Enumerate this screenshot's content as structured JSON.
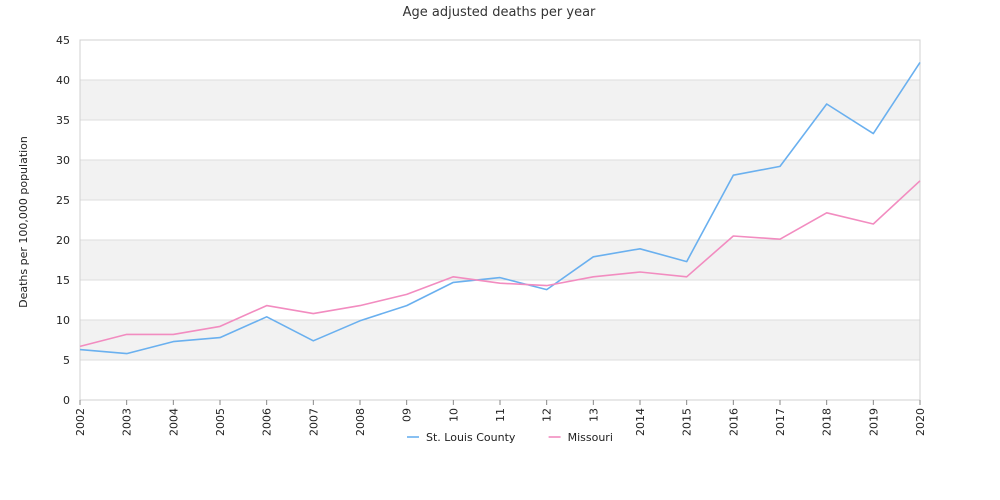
{
  "chart_data": {
    "type": "line",
    "title": "Age adjusted deaths per year",
    "xlabel": "",
    "ylabel": "Deaths per 100,000 population",
    "categories": [
      "2002",
      "2003",
      "2004",
      "2005",
      "2006",
      "2007",
      "2008",
      "09",
      "10",
      "11",
      "12",
      "13",
      "2014",
      "2015",
      "2016",
      "2017",
      "2018",
      "2019",
      "2020"
    ],
    "ylim": [
      0,
      45
    ],
    "yticks": [
      0,
      5,
      10,
      15,
      20,
      25,
      30,
      35,
      40,
      45
    ],
    "grid": "horizontal bands",
    "legend": "bottom-center",
    "series": [
      {
        "name": "St. Louis County",
        "color": "#6ab0ef",
        "values": [
          6.3,
          5.8,
          7.3,
          7.8,
          10.4,
          7.4,
          9.9,
          11.8,
          14.7,
          15.3,
          13.8,
          17.9,
          18.9,
          17.3,
          28.1,
          29.2,
          37.0,
          33.3,
          42.2
        ]
      },
      {
        "name": "Missouri",
        "color": "#f28cc0",
        "values": [
          6.7,
          8.2,
          8.2,
          9.2,
          11.8,
          10.8,
          11.8,
          13.2,
          15.4,
          14.6,
          14.3,
          15.4,
          16.0,
          15.4,
          20.5,
          20.1,
          23.4,
          22.0,
          27.4
        ]
      }
    ]
  }
}
